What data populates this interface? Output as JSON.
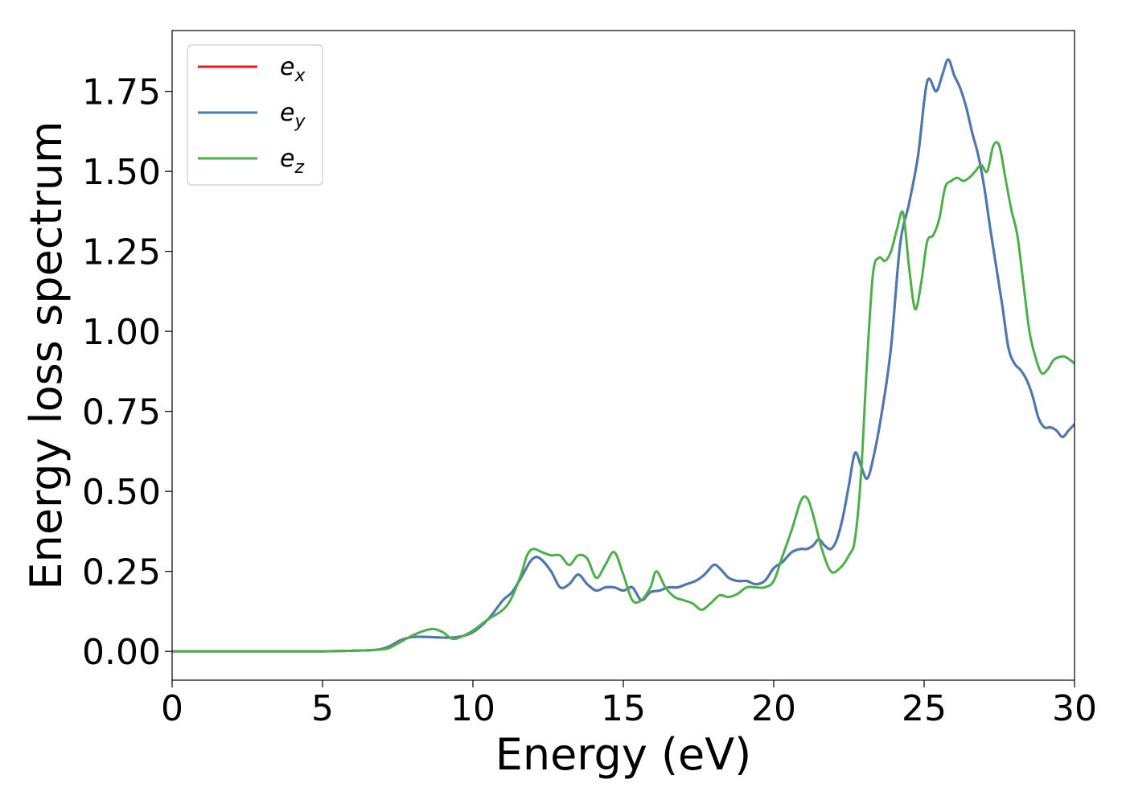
{
  "chart_data": {
    "type": "line",
    "title": "",
    "xlabel": "Energy (eV)",
    "ylabel": "Energy loss spectrum",
    "xlim": [
      0,
      30
    ],
    "ylim": [
      -0.09,
      1.94
    ],
    "xticks": [
      0,
      5,
      10,
      15,
      20,
      25,
      30
    ],
    "xtick_labels": [
      "0",
      "5",
      "10",
      "15",
      "20",
      "25",
      "30"
    ],
    "yticks": [
      0.0,
      0.25,
      0.5,
      0.75,
      1.0,
      1.25,
      1.5,
      1.75
    ],
    "ytick_labels": [
      "0.00",
      "0.25",
      "0.50",
      "0.75",
      "1.00",
      "1.25",
      "1.50",
      "1.75"
    ],
    "grid": false,
    "legend_position": "top-left",
    "series": [
      {
        "name": "e_x",
        "legend_base": "e",
        "legend_sub": "x",
        "color": "#e41a1c",
        "x": [
          0,
          3,
          5,
          6,
          6.8,
          7.2,
          7.6,
          8.0,
          8.5,
          9.0,
          9.5,
          10.0,
          10.5,
          11.0,
          11.3,
          11.6,
          11.9,
          12.1,
          12.3,
          12.6,
          12.9,
          13.2,
          13.5,
          13.8,
          14.1,
          14.4,
          14.7,
          15.0,
          15.3,
          15.6,
          15.9,
          16.2,
          16.5,
          16.8,
          17.1,
          17.4,
          17.7,
          18.0,
          18.2,
          18.5,
          18.8,
          19.1,
          19.4,
          19.7,
          20.0,
          20.3,
          20.6,
          20.9,
          21.1,
          21.3,
          21.5,
          21.7,
          21.9,
          22.1,
          22.3,
          22.5,
          22.7,
          22.9,
          23.1,
          23.3,
          23.6,
          23.9,
          24.2,
          24.5,
          24.8,
          25.1,
          25.4,
          25.6,
          25.8,
          26.0,
          26.2,
          26.4,
          26.6,
          26.8,
          27.0,
          27.2,
          27.4,
          27.6,
          27.8,
          28.0,
          28.2,
          28.4,
          28.6,
          28.8,
          29.0,
          29.2,
          29.4,
          29.6,
          29.8,
          30.0
        ],
        "values": [
          0.0,
          0.0,
          0.0,
          0.002,
          0.005,
          0.015,
          0.035,
          0.045,
          0.045,
          0.043,
          0.045,
          0.06,
          0.1,
          0.16,
          0.185,
          0.23,
          0.28,
          0.295,
          0.285,
          0.25,
          0.2,
          0.21,
          0.24,
          0.21,
          0.19,
          0.2,
          0.2,
          0.19,
          0.2,
          0.16,
          0.185,
          0.19,
          0.2,
          0.2,
          0.21,
          0.22,
          0.24,
          0.27,
          0.26,
          0.23,
          0.22,
          0.22,
          0.21,
          0.22,
          0.26,
          0.28,
          0.31,
          0.32,
          0.32,
          0.33,
          0.35,
          0.33,
          0.32,
          0.35,
          0.42,
          0.52,
          0.62,
          0.58,
          0.54,
          0.6,
          0.75,
          0.95,
          1.27,
          1.4,
          1.55,
          1.78,
          1.75,
          1.8,
          1.85,
          1.8,
          1.76,
          1.7,
          1.62,
          1.55,
          1.45,
          1.32,
          1.2,
          1.08,
          0.95,
          0.9,
          0.88,
          0.85,
          0.8,
          0.73,
          0.7,
          0.7,
          0.69,
          0.67,
          0.69,
          0.71
        ]
      },
      {
        "name": "e_y",
        "legend_base": "e",
        "legend_sub": "y",
        "color": "#4a7ab3",
        "x": [
          0,
          3,
          5,
          6,
          6.8,
          7.2,
          7.6,
          8.0,
          8.5,
          9.0,
          9.5,
          10.0,
          10.5,
          11.0,
          11.3,
          11.6,
          11.9,
          12.1,
          12.3,
          12.6,
          12.9,
          13.2,
          13.5,
          13.8,
          14.1,
          14.4,
          14.7,
          15.0,
          15.3,
          15.6,
          15.9,
          16.2,
          16.5,
          16.8,
          17.1,
          17.4,
          17.7,
          18.0,
          18.2,
          18.5,
          18.8,
          19.1,
          19.4,
          19.7,
          20.0,
          20.3,
          20.6,
          20.9,
          21.1,
          21.3,
          21.5,
          21.7,
          21.9,
          22.1,
          22.3,
          22.5,
          22.7,
          22.9,
          23.1,
          23.3,
          23.6,
          23.9,
          24.2,
          24.5,
          24.8,
          25.1,
          25.4,
          25.6,
          25.8,
          26.0,
          26.2,
          26.4,
          26.6,
          26.8,
          27.0,
          27.2,
          27.4,
          27.6,
          27.8,
          28.0,
          28.2,
          28.4,
          28.6,
          28.8,
          29.0,
          29.2,
          29.4,
          29.6,
          29.8,
          30.0
        ],
        "values": [
          0.0,
          0.0,
          0.0,
          0.002,
          0.005,
          0.015,
          0.035,
          0.045,
          0.045,
          0.043,
          0.045,
          0.06,
          0.1,
          0.16,
          0.185,
          0.23,
          0.28,
          0.295,
          0.285,
          0.25,
          0.2,
          0.21,
          0.24,
          0.21,
          0.19,
          0.2,
          0.2,
          0.19,
          0.2,
          0.16,
          0.185,
          0.19,
          0.2,
          0.2,
          0.21,
          0.22,
          0.24,
          0.27,
          0.26,
          0.23,
          0.22,
          0.22,
          0.21,
          0.22,
          0.26,
          0.28,
          0.31,
          0.32,
          0.32,
          0.33,
          0.35,
          0.33,
          0.32,
          0.35,
          0.42,
          0.52,
          0.62,
          0.58,
          0.54,
          0.6,
          0.75,
          0.95,
          1.27,
          1.4,
          1.55,
          1.78,
          1.75,
          1.8,
          1.85,
          1.8,
          1.76,
          1.7,
          1.62,
          1.55,
          1.45,
          1.32,
          1.2,
          1.08,
          0.95,
          0.9,
          0.88,
          0.85,
          0.8,
          0.73,
          0.7,
          0.7,
          0.69,
          0.67,
          0.69,
          0.71
        ]
      },
      {
        "name": "e_z",
        "legend_base": "e",
        "legend_sub": "z",
        "color": "#4daf4a",
        "x": [
          0,
          3,
          5,
          6,
          6.8,
          7.2,
          7.6,
          8.0,
          8.4,
          8.7,
          9.0,
          9.3,
          9.6,
          10.0,
          10.5,
          11.0,
          11.3,
          11.6,
          11.8,
          12.0,
          12.3,
          12.6,
          12.9,
          13.2,
          13.5,
          13.8,
          14.1,
          14.4,
          14.7,
          15.0,
          15.3,
          15.6,
          15.9,
          16.1,
          16.4,
          16.7,
          17.0,
          17.3,
          17.6,
          17.9,
          18.2,
          18.5,
          18.8,
          19.1,
          19.4,
          19.7,
          20.0,
          20.3,
          20.6,
          20.9,
          21.1,
          21.3,
          21.6,
          21.9,
          22.2,
          22.5,
          22.7,
          22.9,
          23.1,
          23.3,
          23.5,
          23.7,
          23.9,
          24.1,
          24.3,
          24.5,
          24.7,
          24.9,
          25.1,
          25.3,
          25.5,
          25.7,
          25.9,
          26.1,
          26.3,
          26.5,
          26.7,
          26.9,
          27.1,
          27.3,
          27.5,
          27.7,
          27.9,
          28.1,
          28.3,
          28.5,
          28.7,
          28.9,
          29.1,
          29.3,
          29.5,
          29.7,
          30.0
        ],
        "values": [
          0.0,
          0.0,
          0.0,
          0.002,
          0.005,
          0.01,
          0.03,
          0.05,
          0.065,
          0.07,
          0.06,
          0.04,
          0.045,
          0.065,
          0.1,
          0.13,
          0.17,
          0.24,
          0.3,
          0.32,
          0.31,
          0.3,
          0.3,
          0.27,
          0.3,
          0.29,
          0.23,
          0.27,
          0.31,
          0.24,
          0.16,
          0.16,
          0.2,
          0.25,
          0.2,
          0.17,
          0.16,
          0.15,
          0.13,
          0.15,
          0.175,
          0.17,
          0.18,
          0.2,
          0.2,
          0.2,
          0.22,
          0.3,
          0.38,
          0.47,
          0.48,
          0.43,
          0.32,
          0.25,
          0.26,
          0.3,
          0.35,
          0.55,
          0.9,
          1.18,
          1.23,
          1.22,
          1.25,
          1.32,
          1.37,
          1.2,
          1.07,
          1.15,
          1.28,
          1.3,
          1.35,
          1.45,
          1.47,
          1.48,
          1.47,
          1.48,
          1.5,
          1.52,
          1.5,
          1.58,
          1.58,
          1.48,
          1.38,
          1.3,
          1.15,
          1.0,
          0.92,
          0.87,
          0.88,
          0.91,
          0.92,
          0.92,
          0.9
        ]
      }
    ]
  }
}
